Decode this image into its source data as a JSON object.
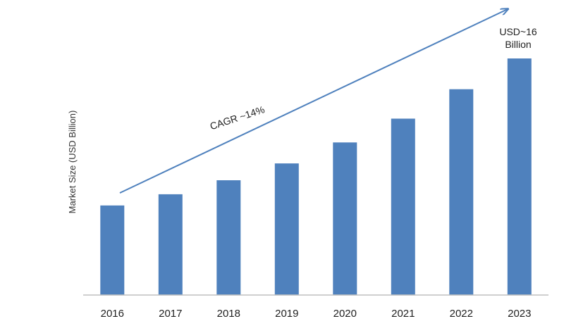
{
  "chart_data": {
    "type": "bar",
    "title": "",
    "xlabel": "",
    "ylabel": "Market Size (USD Billion)",
    "categories": [
      "2016",
      "2017",
      "2018",
      "2019",
      "2020",
      "2021",
      "2022",
      "2023"
    ],
    "values": [
      6.4,
      7.2,
      8.2,
      9.4,
      10.9,
      12.6,
      14.7,
      16.9
    ],
    "ylim": [
      0,
      18
    ],
    "grid": false,
    "legend": "none",
    "bar_color": "#4f81bd",
    "annotations": {
      "cagr": "CAGR ~14%",
      "end_value_line1": "USD~16",
      "end_value_line2": "Billion"
    }
  }
}
